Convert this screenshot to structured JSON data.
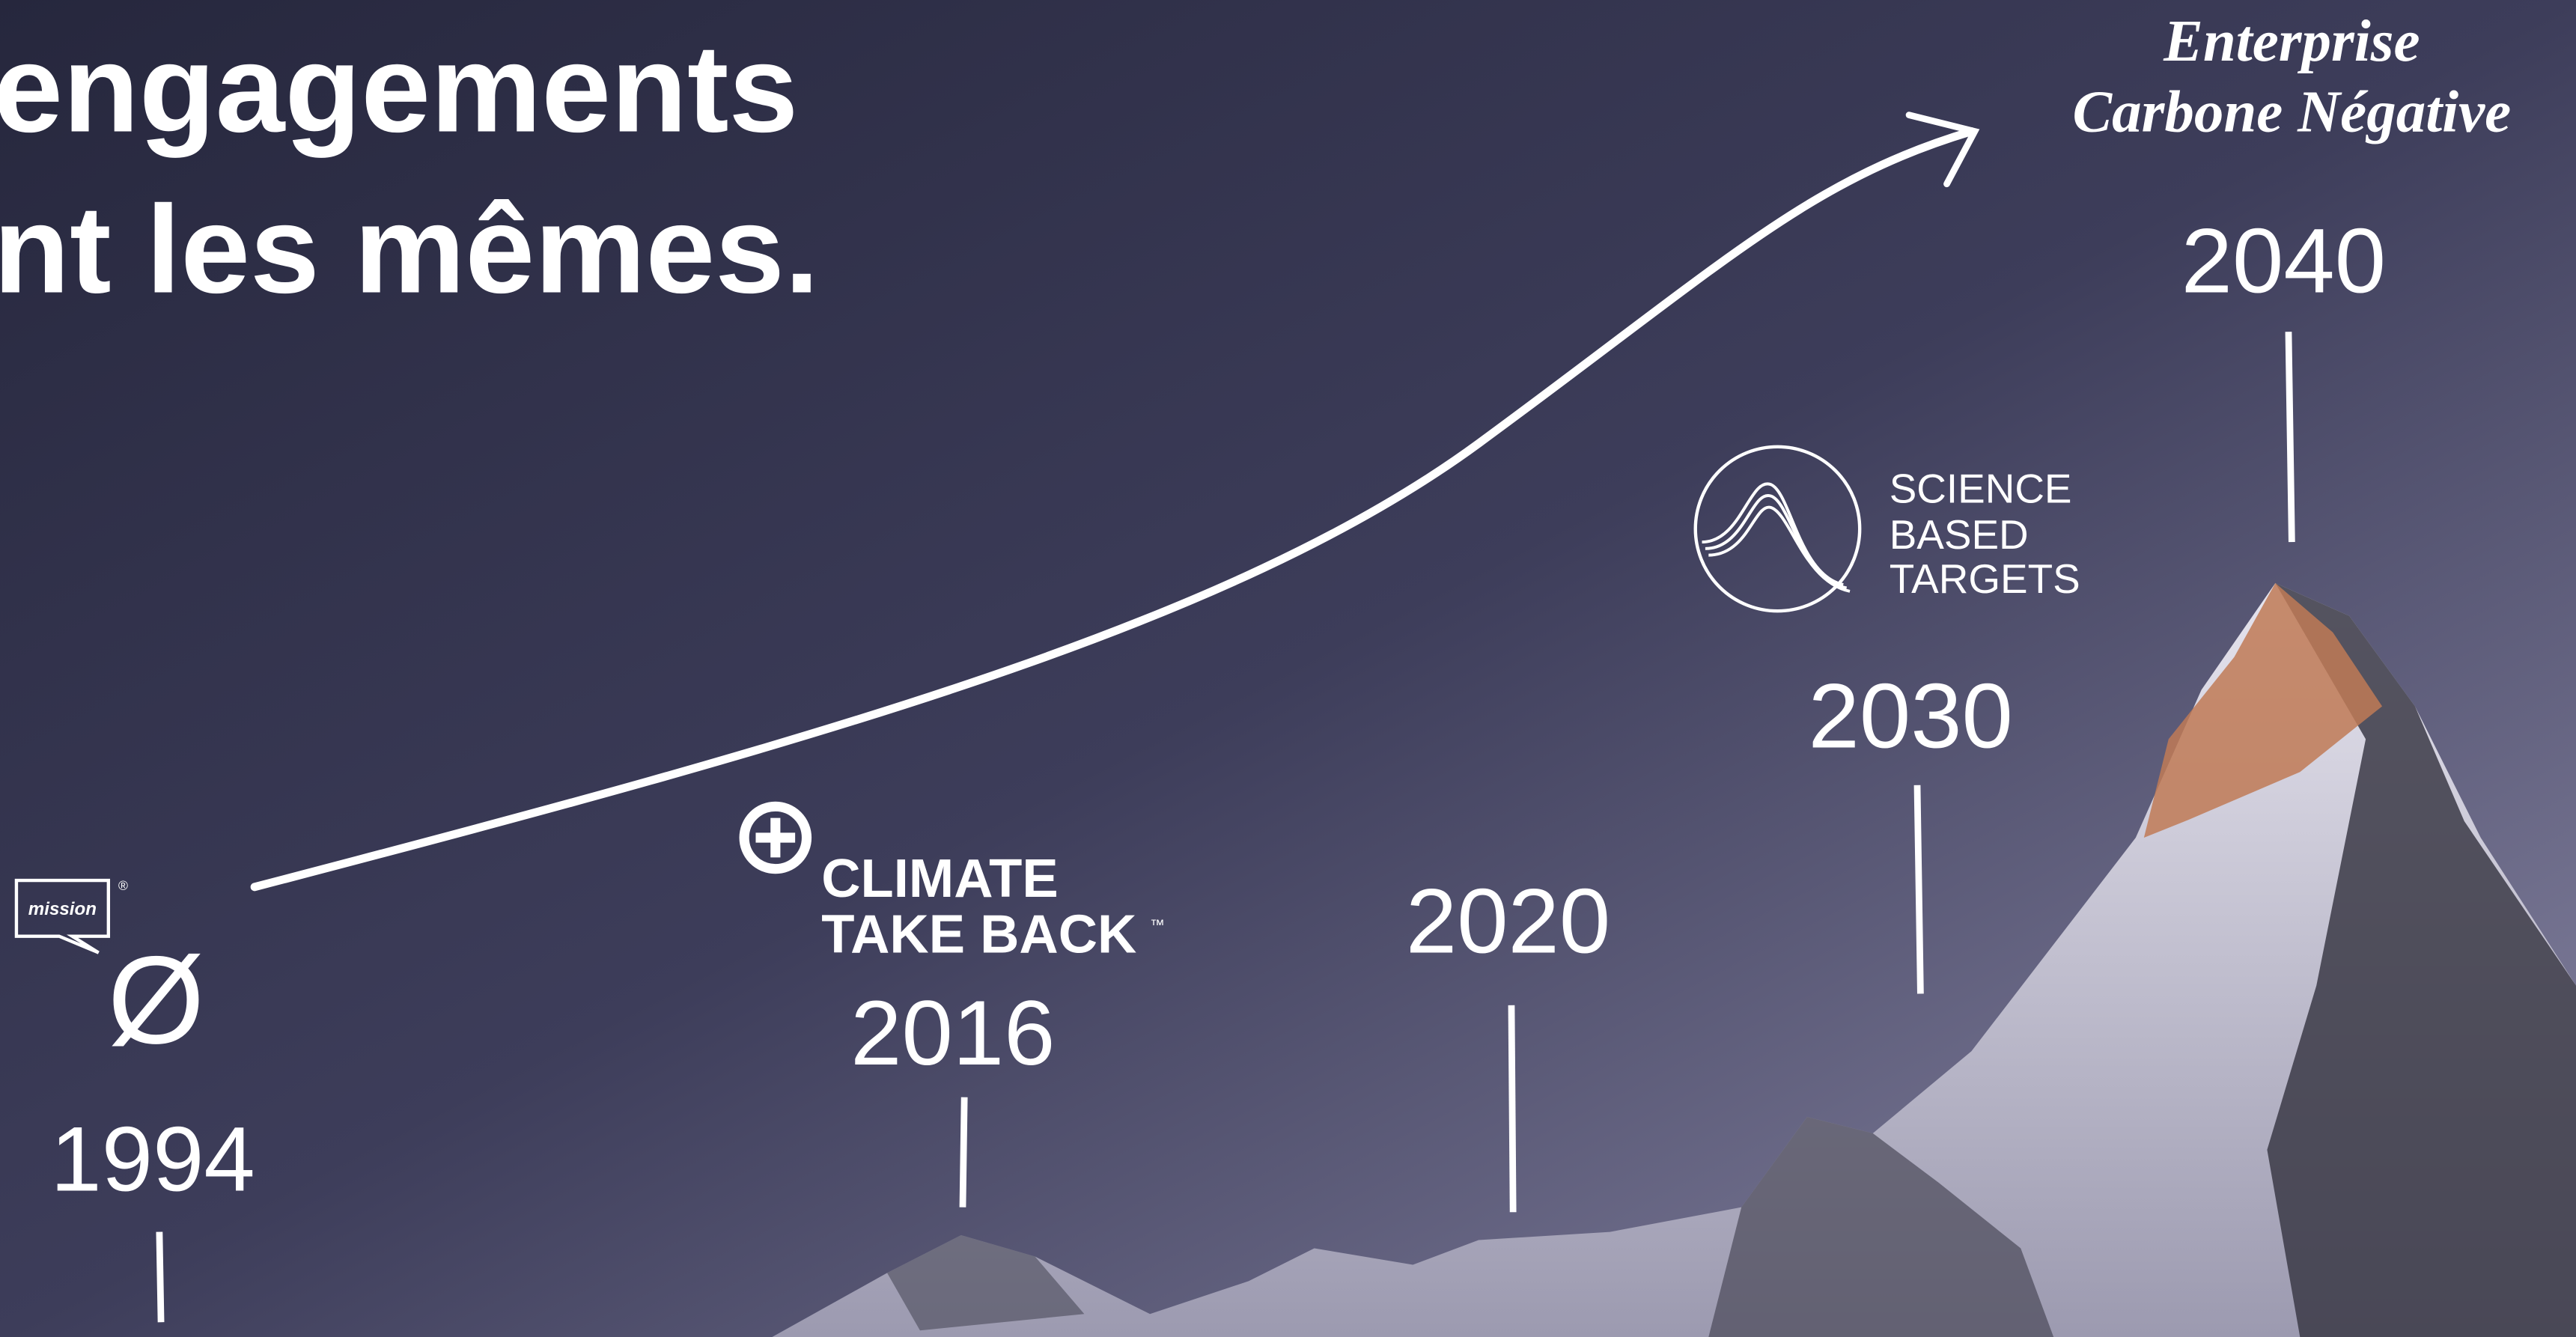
{
  "title": {
    "lines": [
      "engagements",
      "nt les mêmes."
    ]
  },
  "milestones": {
    "m1994": {
      "year": "1994",
      "logo_text": "mission",
      "logo_mark": "®",
      "symbol": "Ø"
    },
    "m2016": {
      "year": "2016",
      "logo_lines": [
        "CLIMATE",
        "TAKE BACK"
      ],
      "logo_mark": "™"
    },
    "m2020": {
      "year": "2020"
    },
    "m2030": {
      "year": "2030",
      "logo_lines": [
        "SCIENCE",
        "BASED",
        "TARGETS"
      ]
    },
    "m2040": {
      "year": "2040",
      "goal_lines": [
        "Enterprise",
        "Carbone Négative"
      ]
    }
  }
}
